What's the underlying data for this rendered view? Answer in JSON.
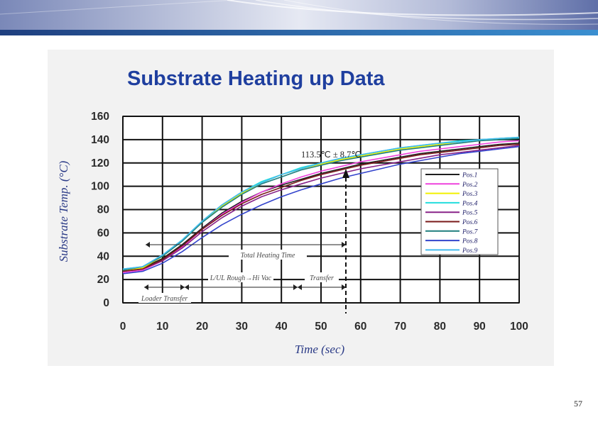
{
  "slide": {
    "page_number": "57"
  },
  "chart_data": {
    "type": "line",
    "title": "Substrate Heating up Data",
    "xlabel": "Time (sec)",
    "ylabel": "Substrate Temp. (°C)",
    "xlim": [
      0,
      100
    ],
    "ylim": [
      0,
      160
    ],
    "xticks": [
      "0",
      "10",
      "20",
      "30",
      "40",
      "50",
      "60",
      "70",
      "80",
      "90",
      "100"
    ],
    "yticks": [
      "0",
      "20",
      "40",
      "60",
      "80",
      "100",
      "120",
      "140",
      "160"
    ],
    "grid": true,
    "legend_position": "right",
    "colors": {
      "Pos.1": "#1e1e1e",
      "Pos.2": "#ee44dd",
      "Pos.3": "#f2f000",
      "Pos.4": "#22dddd",
      "Pos.5": "#882288",
      "Pos.6": "#7a1a1a",
      "Pos.7": "#1f7f7f",
      "Pos.8": "#3344cc",
      "Pos.9": "#44bbee"
    },
    "x": [
      0,
      5,
      10,
      15,
      20,
      25,
      30,
      35,
      40,
      45,
      50,
      55,
      60,
      65,
      70,
      75,
      80,
      85,
      90,
      95,
      100
    ],
    "series": [
      {
        "name": "Pos.1",
        "values": [
          28,
          30,
          38,
          50,
          64,
          77,
          87,
          95,
          101,
          106,
          111,
          115,
          119,
          122,
          125,
          128,
          130,
          132,
          134,
          136,
          137
        ]
      },
      {
        "name": "Pos.2",
        "values": [
          26,
          28,
          36,
          48,
          63,
          76,
          86,
          95,
          102,
          108,
          113,
          117,
          121,
          124,
          127,
          130,
          132,
          134,
          136,
          138,
          139
        ]
      },
      {
        "name": "Pos.3",
        "values": [
          28,
          30,
          40,
          53,
          69,
          83,
          94,
          103,
          110,
          115,
          119,
          123,
          126,
          129,
          132,
          134,
          136,
          138,
          139,
          141,
          142
        ]
      },
      {
        "name": "Pos.4",
        "values": [
          29,
          31,
          41,
          54,
          70,
          84,
          95,
          104,
          110,
          116,
          120,
          124,
          127,
          130,
          133,
          135,
          137,
          139,
          140,
          141,
          142
        ]
      },
      {
        "name": "Pos.5",
        "values": [
          27,
          29,
          36,
          47,
          61,
          73,
          83,
          91,
          97,
          102,
          107,
          111,
          115,
          118,
          121,
          124,
          127,
          129,
          131,
          133,
          135
        ]
      },
      {
        "name": "Pos.6",
        "values": [
          27,
          29,
          37,
          49,
          63,
          75,
          85,
          93,
          99,
          105,
          110,
          114,
          118,
          121,
          124,
          127,
          129,
          131,
          133,
          135,
          136
        ]
      },
      {
        "name": "Pos.7",
        "values": [
          28,
          31,
          40,
          53,
          69,
          82,
          93,
          102,
          108,
          114,
          118,
          122,
          125,
          128,
          131,
          133,
          135,
          137,
          139,
          140,
          141
        ]
      },
      {
        "name": "Pos.8",
        "values": [
          25,
          27,
          34,
          44,
          56,
          67,
          76,
          84,
          91,
          97,
          102,
          107,
          111,
          115,
          119,
          122,
          125,
          128,
          130,
          132,
          134
        ]
      },
      {
        "name": "Pos.9",
        "values": [
          29,
          31,
          41,
          54,
          70,
          84,
          95,
          103,
          110,
          115,
          120,
          124,
          127,
          130,
          133,
          135,
          137,
          138,
          140,
          141,
          142
        ]
      }
    ],
    "annotations": {
      "result": "113.5℃ ± 8.7℃",
      "total_heating_time": "Total Heating Time",
      "rough_hi_vac": "L/UL Rough→Hi Vac",
      "transfer": "Transfer",
      "loader_transfer": "Loader Transfer"
    }
  }
}
